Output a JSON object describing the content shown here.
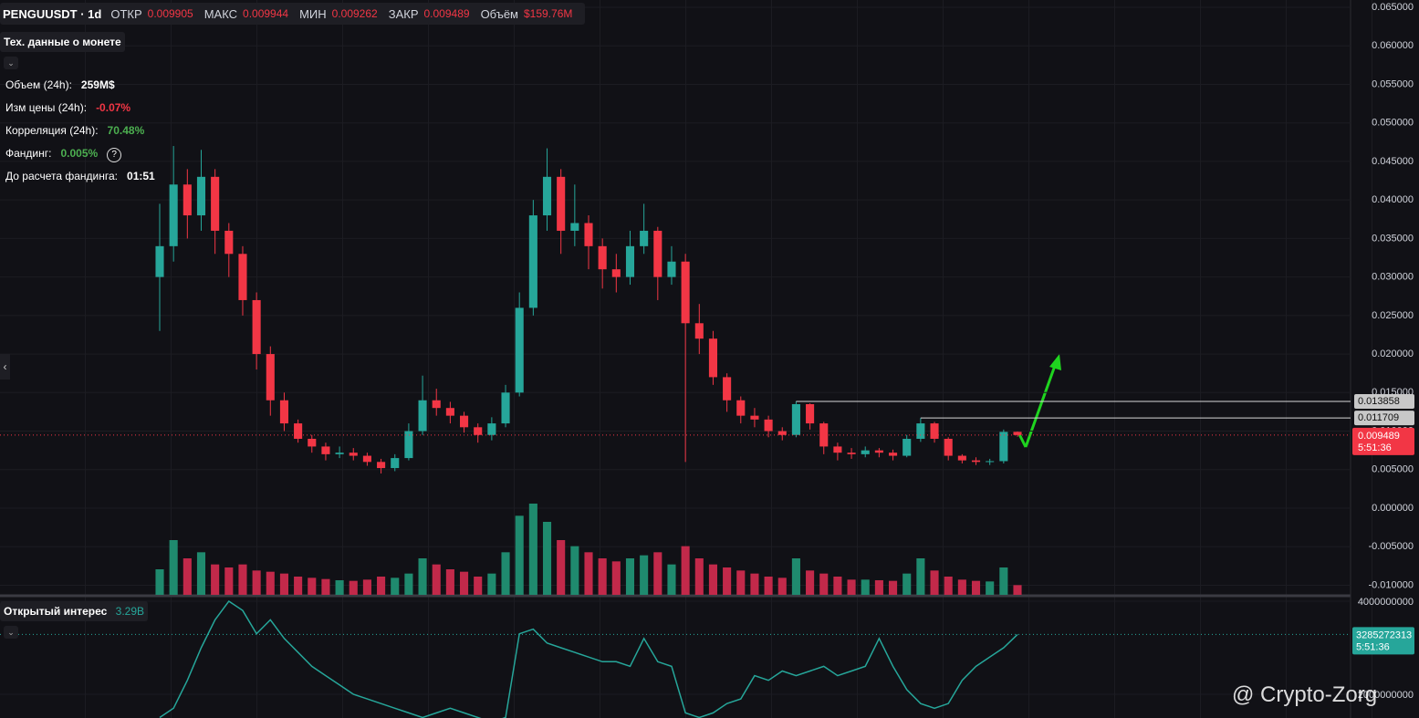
{
  "header": {
    "symbol": "PENGUUSDT · 1d",
    "open_label": "ОТКР",
    "open": "0.009905",
    "high_label": "МАКС",
    "high": "0.009944",
    "low_label": "МИН",
    "low": "0.009262",
    "close_label": "ЗАКР",
    "close": "0.009489",
    "volume_label": "Объём",
    "volume": "$159.76M"
  },
  "info_panel": {
    "title": "Тех. данные о монете",
    "rows": [
      {
        "label": "Объем (24h):",
        "value": "259M$",
        "color": "#ffffff"
      },
      {
        "label": "Изм цены (24h):",
        "value": "-0.07%",
        "color": "#f23645"
      },
      {
        "label": "Корреляция (24h):",
        "value": "70.48%",
        "color": "#4caf50"
      },
      {
        "label": "Фандинг:",
        "value": "0.005%",
        "color": "#4caf50"
      },
      {
        "label": "До расчета фандинга:",
        "value": "01:51",
        "color": "#ffffff"
      }
    ]
  },
  "watermark": "@ Crypto-Zorg",
  "chart_data": [
    {
      "type": "candlestick",
      "up_color": "#26a69a",
      "down_color": "#f23645",
      "volume_up_color": "#1f8a6e",
      "volume_down_color": "#c2294a",
      "open": [
        0.03,
        0.034,
        0.042,
        0.038,
        0.043,
        0.036,
        0.033,
        0.027,
        0.02,
        0.014,
        0.011,
        0.009,
        0.008,
        0.007,
        0.0072,
        0.0068,
        0.006,
        0.0052,
        0.0065,
        0.01,
        0.014,
        0.013,
        0.012,
        0.0105,
        0.0095,
        0.011,
        0.015,
        0.026,
        0.038,
        0.043,
        0.036,
        0.037,
        0.034,
        0.031,
        0.03,
        0.034,
        0.036,
        0.03,
        0.032,
        0.024,
        0.022,
        0.017,
        0.014,
        0.012,
        0.0115,
        0.01,
        0.0095,
        0.0135,
        0.011,
        0.008,
        0.0072,
        0.007,
        0.0075,
        0.0072,
        0.0068,
        0.009,
        0.011,
        0.009,
        0.0068,
        0.0062,
        0.006,
        0.0061,
        0.009905
      ],
      "high": [
        0.0395,
        0.047,
        0.044,
        0.0465,
        0.044,
        0.037,
        0.034,
        0.028,
        0.021,
        0.015,
        0.0115,
        0.0095,
        0.0085,
        0.008,
        0.0078,
        0.0072,
        0.0064,
        0.007,
        0.011,
        0.0172,
        0.0155,
        0.0138,
        0.0125,
        0.011,
        0.0118,
        0.016,
        0.028,
        0.04,
        0.0467,
        0.044,
        0.042,
        0.038,
        0.035,
        0.033,
        0.036,
        0.0395,
        0.0365,
        0.034,
        0.033,
        0.0265,
        0.023,
        0.0175,
        0.0145,
        0.013,
        0.012,
        0.0105,
        0.013858,
        0.0136,
        0.0112,
        0.0085,
        0.0078,
        0.008,
        0.0078,
        0.0076,
        0.0095,
        0.011709,
        0.0112,
        0.0092,
        0.007,
        0.0066,
        0.0064,
        0.0102,
        0.009944
      ],
      "low": [
        0.023,
        0.032,
        0.035,
        0.036,
        0.033,
        0.03,
        0.025,
        0.018,
        0.012,
        0.01,
        0.0085,
        0.0072,
        0.0062,
        0.0065,
        0.0062,
        0.0055,
        0.0045,
        0.0048,
        0.0062,
        0.0095,
        0.012,
        0.011,
        0.0098,
        0.0085,
        0.0088,
        0.0105,
        0.0145,
        0.025,
        0.036,
        0.033,
        0.034,
        0.031,
        0.0285,
        0.028,
        0.029,
        0.033,
        0.027,
        0.029,
        0.006,
        0.02,
        0.016,
        0.0125,
        0.011,
        0.0105,
        0.0092,
        0.0088,
        0.0092,
        0.0102,
        0.007,
        0.0062,
        0.0064,
        0.0066,
        0.0066,
        0.0062,
        0.0066,
        0.0086,
        0.0085,
        0.0062,
        0.0058,
        0.0056,
        0.0056,
        0.0058,
        0.009262
      ],
      "close": [
        0.034,
        0.042,
        0.038,
        0.043,
        0.036,
        0.033,
        0.027,
        0.02,
        0.014,
        0.011,
        0.009,
        0.008,
        0.007,
        0.0072,
        0.0068,
        0.006,
        0.0052,
        0.0065,
        0.01,
        0.014,
        0.013,
        0.012,
        0.0105,
        0.0095,
        0.011,
        0.015,
        0.026,
        0.038,
        0.043,
        0.036,
        0.037,
        0.034,
        0.031,
        0.03,
        0.034,
        0.036,
        0.03,
        0.032,
        0.024,
        0.022,
        0.017,
        0.014,
        0.012,
        0.0115,
        0.01,
        0.0095,
        0.0135,
        0.011,
        0.008,
        0.0072,
        0.007,
        0.0075,
        0.0072,
        0.0068,
        0.009,
        0.011,
        0.009,
        0.0068,
        0.0062,
        0.006,
        0.0061,
        0.0099,
        0.009489
      ],
      "volume": [
        420,
        900,
        600,
        700,
        500,
        450,
        500,
        400,
        380,
        350,
        300,
        280,
        260,
        240,
        230,
        250,
        300,
        280,
        350,
        600,
        500,
        420,
        380,
        300,
        350,
        700,
        1300,
        1500,
        1200,
        900,
        800,
        700,
        600,
        550,
        600,
        650,
        700,
        500,
        800,
        600,
        500,
        450,
        400,
        350,
        300,
        280,
        600,
        400,
        350,
        300,
        250,
        250,
        240,
        230,
        350,
        600,
        400,
        300,
        250,
        230,
        220,
        450,
        159.76
      ],
      "ylim": [
        -0.01125,
        0.06595
      ],
      "yticks": [
        {
          "value": 0.065,
          "label": "0.065000"
        },
        {
          "value": 0.06,
          "label": "0.060000"
        },
        {
          "value": 0.055,
          "label": "0.055000"
        },
        {
          "value": 0.05,
          "label": "0.050000"
        },
        {
          "value": 0.045,
          "label": "0.045000"
        },
        {
          "value": 0.04,
          "label": "0.040000"
        },
        {
          "value": 0.035,
          "label": "0.035000"
        },
        {
          "value": 0.03,
          "label": "0.030000"
        },
        {
          "value": 0.025,
          "label": "0.025000"
        },
        {
          "value": 0.02,
          "label": "0.020000"
        },
        {
          "value": 0.015,
          "label": "0.015000"
        },
        {
          "value": 0.01,
          "label": "0.010000"
        },
        {
          "value": 0.005,
          "label": "0.005000"
        },
        {
          "value": 0,
          "label": "0.000000"
        },
        {
          "value": -0.005,
          "label": "-0.005000"
        },
        {
          "value": -0.01,
          "label": "-0.010000"
        }
      ],
      "levels": [
        {
          "value": 0.013858,
          "label": "0.013858"
        },
        {
          "value": 0.011709,
          "label": "0.011709"
        }
      ],
      "last_price": {
        "value": 0.009489,
        "label": "0.009489",
        "timer": "5:51:36"
      }
    },
    {
      "type": "line",
      "title": "Открытый интерес",
      "current_label": "3.29B",
      "color": "#26a69a",
      "values": [
        1500000000.0,
        1700000000.0,
        2300000000.0,
        3000000000.0,
        3600000000.0,
        4000000000.0,
        3800000000.0,
        3300000000.0,
        3600000000.0,
        3200000000.0,
        2900000000.0,
        2600000000.0,
        2400000000.0,
        2200000000.0,
        2000000000.0,
        1900000000.0,
        1800000000.0,
        1700000000.0,
        1600000000.0,
        1500000000.0,
        1600000000.0,
        1700000000.0,
        1600000000.0,
        1500000000.0,
        1400000000.0,
        1500000000.0,
        3300000000.0,
        3400000000.0,
        3100000000.0,
        3000000000.0,
        2900000000.0,
        2800000000.0,
        2700000000.0,
        2700000000.0,
        2600000000.0,
        3200000000.0,
        2700000000.0,
        2600000000.0,
        1600000000.0,
        1500000000.0,
        1600000000.0,
        1800000000.0,
        1900000000.0,
        2400000000.0,
        2300000000.0,
        2500000000.0,
        2400000000.0,
        2500000000.0,
        2600000000.0,
        2400000000.0,
        2500000000.0,
        2600000000.0,
        3200000000.0,
        2600000000.0,
        2100000000.0,
        1800000000.0,
        1700000000.0,
        1800000000.0,
        2300000000.0,
        2600000000.0,
        2800000000.0,
        3000000000.0,
        3285272313
      ],
      "ylim": [
        1490000000.0,
        4078000000.0
      ],
      "yticks": [
        4000000000,
        2000000000
      ],
      "timer": "5:51:36"
    }
  ]
}
